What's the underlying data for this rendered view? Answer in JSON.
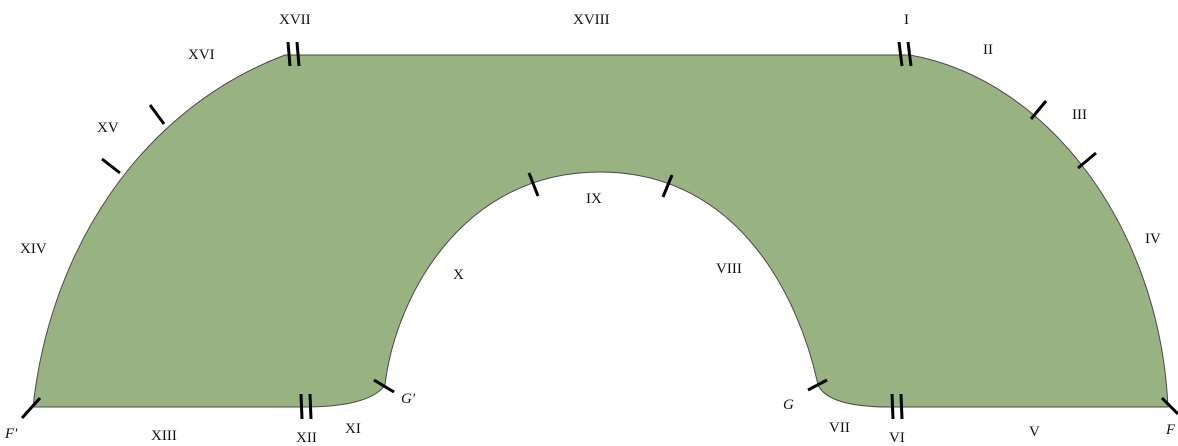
{
  "diagram": {
    "fill_color": "#98b381",
    "outline_color": "#4a4a4a",
    "tick_color": "#000000",
    "segment_labels": [
      "I",
      "II",
      "III",
      "IV",
      "V",
      "VI",
      "VII",
      "VIII",
      "IX",
      "X",
      "XI",
      "XII",
      "XIII",
      "XIV",
      "XV",
      "XVI",
      "XVII",
      "XVIII"
    ],
    "point_labels": [
      "F",
      "F′",
      "G",
      "G′"
    ]
  }
}
